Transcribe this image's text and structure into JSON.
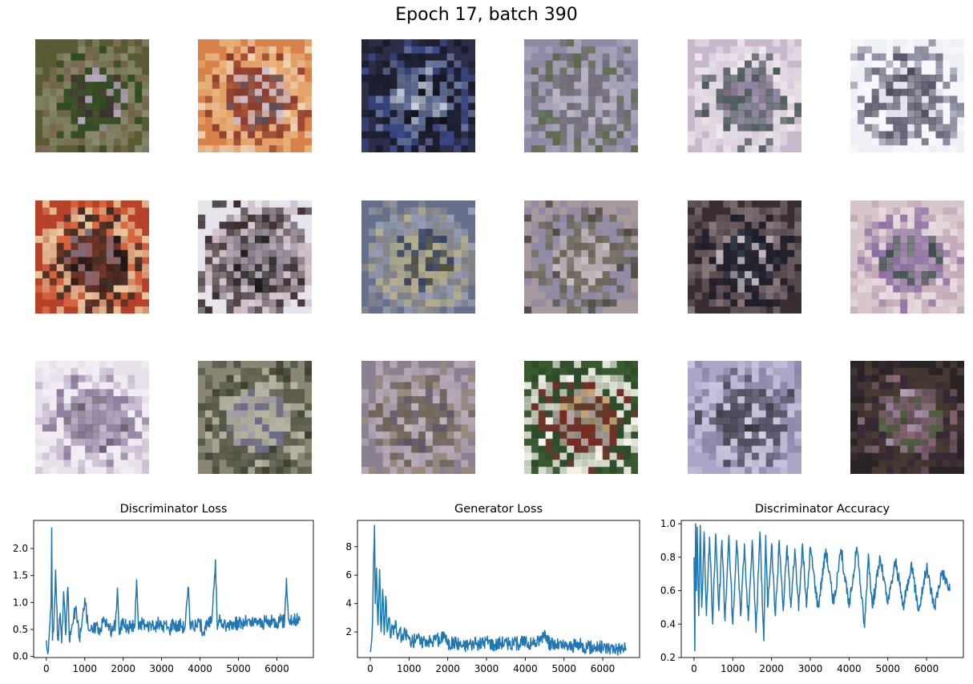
{
  "suptitle": "Epoch 17, batch 390",
  "grid": {
    "rows": 3,
    "cols": 6,
    "tiles": [
      {
        "palette": [
          "#5a5a34",
          "#8a8a70",
          "#2f4a22",
          "#b9a7c4",
          "#7f6d55",
          "#3b2f35"
        ]
      },
      {
        "palette": [
          "#d8824a",
          "#e9b27a",
          "#8a3a2c",
          "#c9c0d2",
          "#f0d6b8",
          "#5a4a58"
        ]
      },
      {
        "palette": [
          "#2c2e4a",
          "#1a1c2a",
          "#6a7aa0",
          "#c9d2e0",
          "#3b4a8a",
          "#101018"
        ]
      },
      {
        "palette": [
          "#8f8aa5",
          "#a7a3b9",
          "#6f6a70",
          "#b8b4c6",
          "#5a6a48",
          "#c0b9c4"
        ]
      },
      {
        "palette": [
          "#c8b8cc",
          "#e4dce6",
          "#4a5a5a",
          "#8a7f9a",
          "#f0e8ec",
          "#6a5a6a"
        ]
      },
      {
        "palette": [
          "#eef0f6",
          "#f8f8fc",
          "#5a586a",
          "#3a3a4a",
          "#8a8aa0",
          "#dfe0ea"
        ]
      },
      {
        "palette": [
          "#b6422a",
          "#e9c8a0",
          "#3c2c24",
          "#7c6e7e",
          "#d86a40",
          "#1a1614"
        ]
      },
      {
        "palette": [
          "#e6e4ec",
          "#3a2c2c",
          "#8a7c8a",
          "#1e1818",
          "#c8b4c0",
          "#5e5460"
        ]
      },
      {
        "palette": [
          "#66708a",
          "#8d8a8a",
          "#b7b08a",
          "#3a4460",
          "#9aa0b6",
          "#50503c"
        ]
      },
      {
        "palette": [
          "#a89a9c",
          "#8d88a6",
          "#6a6658",
          "#b7acb2",
          "#4e4a44",
          "#c9bfc3"
        ]
      },
      {
        "palette": [
          "#3a2e30",
          "#6a5a60",
          "#1e1e2c",
          "#c8c0c6",
          "#8a7a7c",
          "#2c3a4a"
        ]
      },
      {
        "palette": [
          "#d6c6cc",
          "#c4a8b8",
          "#8a6aa0",
          "#3a4a4a",
          "#e6dce0",
          "#a08aa8"
        ]
      },
      {
        "palette": [
          "#e8e0ea",
          "#f4eef4",
          "#8a7a9a",
          "#6a6070",
          "#c8bcd0",
          "#a89ab8"
        ]
      },
      {
        "palette": [
          "#8a8674",
          "#5a5a4a",
          "#b8b4a4",
          "#6a6a8a",
          "#3a4030",
          "#a6a0b0"
        ]
      },
      {
        "palette": [
          "#8a8090",
          "#b8aab8",
          "#6e6454",
          "#c8bcc4",
          "#9a8c7a",
          "#5a5464"
        ]
      },
      {
        "palette": [
          "#3a5a30",
          "#f6f4ee",
          "#7a2a24",
          "#b8a4a8",
          "#2a4a2a",
          "#caa878"
        ]
      },
      {
        "palette": [
          "#a9a6c8",
          "#c8c4dc",
          "#4a4a5a",
          "#2c3030",
          "#8a84a6",
          "#d4cfe3"
        ]
      },
      {
        "palette": [
          "#2a2424",
          "#4a3c34",
          "#8a6a78",
          "#5a6a48",
          "#3a2a3a",
          "#b0a0b8"
        ]
      }
    ]
  },
  "charts": [
    {
      "title": "Discriminator Loss",
      "color": "#1f77b4"
    },
    {
      "title": "Generator Loss",
      "color": "#1f77b4"
    },
    {
      "title": "Discriminator Accuracy",
      "color": "#1f77b4"
    }
  ],
  "chart_data": [
    {
      "type": "line",
      "title": "Discriminator Loss",
      "xlabel": "",
      "ylabel": "",
      "xlim": [
        -330,
        6950
      ],
      "ylim": [
        -0.02,
        2.52
      ],
      "xticks": [
        0,
        1000,
        2000,
        3000,
        4000,
        5000,
        6000
      ],
      "yticks": [
        0.0,
        0.5,
        1.0,
        1.5,
        2.0
      ],
      "ytick_labels": [
        "0.0",
        "0.5",
        "1.0",
        "1.5",
        "2.0"
      ],
      "grid": false,
      "series": [
        {
          "x": [
            0,
            40,
            80,
            120,
            140,
            160,
            200,
            240,
            300,
            360,
            400,
            450,
            500,
            560,
            600,
            680,
            760,
            860,
            920,
            1000,
            1080,
            1200,
            1300,
            1400,
            1500,
            1600,
            1700,
            1800,
            1850,
            1900,
            2000,
            2100,
            2200,
            2300,
            2350,
            2400,
            2500,
            2600,
            2700,
            2800,
            2900,
            3000,
            3100,
            3200,
            3300,
            3400,
            3500,
            3600,
            3700,
            3750,
            3800,
            3900,
            4000,
            4100,
            4200,
            4300,
            4400,
            4450,
            4500,
            4600,
            4700,
            4800,
            4900,
            5000,
            5100,
            5200,
            5300,
            5400,
            5500,
            5600,
            5700,
            5800,
            5900,
            6000,
            6100,
            6200,
            6250,
            6300,
            6400,
            6500,
            6600
          ],
          "y": [
            0.3,
            0.05,
            0.5,
            0.9,
            2.38,
            0.3,
            0.7,
            1.6,
            0.3,
            0.8,
            0.25,
            1.2,
            0.4,
            1.28,
            0.3,
            0.6,
            0.9,
            0.35,
            0.55,
            1.08,
            0.6,
            0.45,
            0.6,
            0.5,
            0.7,
            0.55,
            0.45,
            0.6,
            1.27,
            0.4,
            0.7,
            0.5,
            0.6,
            0.55,
            1.42,
            0.5,
            0.65,
            0.55,
            0.6,
            0.5,
            0.62,
            0.55,
            0.6,
            0.48,
            0.65,
            0.55,
            0.6,
            0.52,
            1.27,
            0.5,
            0.6,
            0.55,
            0.6,
            0.45,
            0.6,
            0.65,
            1.79,
            0.5,
            0.65,
            0.6,
            0.55,
            0.65,
            0.6,
            0.62,
            0.6,
            0.65,
            0.6,
            0.62,
            0.66,
            0.6,
            0.65,
            0.62,
            0.66,
            0.64,
            0.66,
            0.65,
            1.45,
            0.7,
            0.65,
            0.68,
            0.66
          ]
        }
      ]
    },
    {
      "type": "line",
      "title": "Generator Loss",
      "xlabel": "",
      "ylabel": "",
      "xlim": [
        -330,
        6950
      ],
      "ylim": [
        0.2,
        9.85
      ],
      "xticks": [
        0,
        1000,
        2000,
        3000,
        4000,
        5000,
        6000
      ],
      "yticks": [
        2,
        4,
        6,
        8
      ],
      "ytick_labels": [
        "2",
        "4",
        "6",
        "8"
      ],
      "grid": false,
      "series": [
        {
          "x": [
            0,
            30,
            60,
            90,
            110,
            130,
            160,
            200,
            240,
            280,
            320,
            360,
            400,
            440,
            480,
            520,
            560,
            600,
            650,
            700,
            760,
            820,
            900,
            1000,
            1100,
            1200,
            1300,
            1400,
            1500,
            1600,
            1700,
            1800,
            1900,
            2000,
            2200,
            2400,
            2600,
            2800,
            3000,
            3200,
            3400,
            3600,
            3800,
            4000,
            4200,
            4400,
            4500,
            4600,
            4800,
            5000,
            5200,
            5400,
            5600,
            5800,
            6000,
            6200,
            6400,
            6600
          ],
          "y": [
            0.7,
            1.2,
            3.0,
            7.5,
            9.5,
            4.0,
            6.5,
            2.5,
            6.4,
            2.0,
            5.0,
            1.8,
            4.5,
            2.0,
            3.0,
            1.6,
            2.5,
            1.8,
            2.8,
            1.5,
            2.2,
            1.4,
            2.0,
            1.5,
            1.3,
            1.8,
            1.2,
            1.5,
            1.4,
            1.3,
            1.6,
            1.2,
            2.0,
            1.1,
            1.3,
            1.0,
            1.2,
            1.1,
            1.4,
            1.1,
            1.3,
            1.1,
            1.2,
            1.3,
            1.1,
            1.5,
            2.1,
            1.2,
            1.1,
            1.0,
            1.0,
            1.1,
            0.9,
            0.95,
            0.9,
            0.9,
            0.85,
            0.85
          ]
        }
      ]
    },
    {
      "type": "line",
      "title": "Discriminator Accuracy",
      "xlabel": "",
      "ylabel": "",
      "xlim": [
        -330,
        6950
      ],
      "ylim": [
        0.2,
        1.02
      ],
      "xticks": [
        0,
        1000,
        2000,
        3000,
        4000,
        5000,
        6000
      ],
      "yticks": [
        0.2,
        0.4,
        0.6,
        0.8,
        1.0
      ],
      "ytick_labels": [
        "0.2",
        "0.4",
        "0.6",
        "0.8",
        "1.0"
      ],
      "grid": false,
      "series": [
        {
          "x": [
            0,
            20,
            40,
            60,
            80,
            120,
            160,
            200,
            260,
            320,
            400,
            480,
            560,
            640,
            720,
            800,
            900,
            1000,
            1100,
            1200,
            1300,
            1400,
            1500,
            1600,
            1700,
            1800,
            1850,
            1900,
            2000,
            2100,
            2200,
            2300,
            2400,
            2500,
            2600,
            2700,
            2800,
            2900,
            3000,
            3200,
            3400,
            3600,
            3800,
            4000,
            4200,
            4400,
            4500,
            4600,
            4800,
            5000,
            5200,
            5400,
            5600,
            5800,
            6000,
            6200,
            6400,
            6600
          ],
          "y": [
            0.8,
            0.24,
            1.0,
            0.6,
            0.98,
            0.45,
            0.99,
            0.5,
            0.95,
            0.45,
            0.92,
            0.4,
            0.94,
            0.48,
            0.9,
            0.42,
            0.93,
            0.4,
            0.9,
            0.45,
            0.88,
            0.42,
            0.9,
            0.35,
            0.95,
            0.3,
            0.93,
            0.5,
            0.88,
            0.45,
            0.9,
            0.48,
            0.87,
            0.5,
            0.85,
            0.48,
            0.88,
            0.5,
            0.86,
            0.5,
            0.85,
            0.52,
            0.84,
            0.5,
            0.86,
            0.38,
            0.82,
            0.5,
            0.8,
            0.52,
            0.78,
            0.5,
            0.76,
            0.48,
            0.74,
            0.5,
            0.72,
            0.6
          ]
        }
      ]
    }
  ]
}
